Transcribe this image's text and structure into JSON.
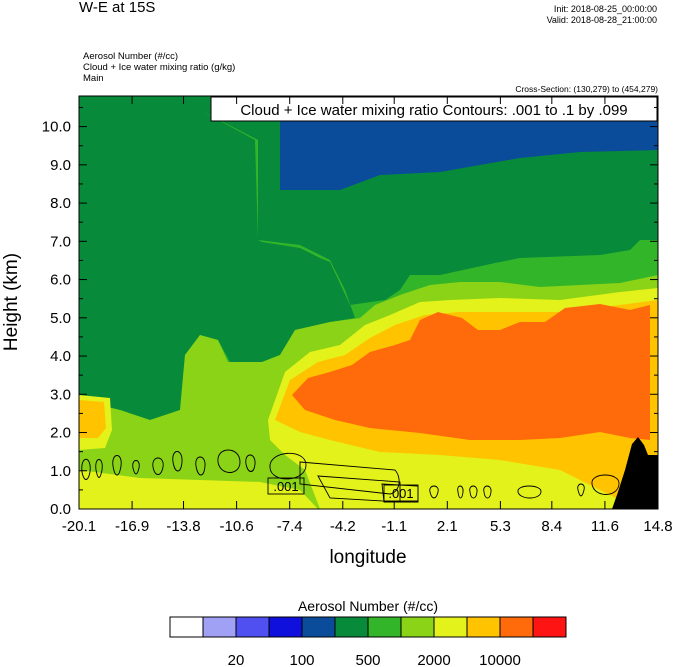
{
  "header": {
    "title": "W-E at 15S",
    "init": "Init: 2018-08-25_00:00:00",
    "valid": "Valid: 2018-08-28_21:00:00",
    "fields": [
      "Aerosol Number   (#/cc)",
      "Cloud + Ice water mixing ratio   (g/kg)",
      "Main"
    ],
    "cross_section": "Cross-Section: (130,279) to (454,279)"
  },
  "chart_data": {
    "type": "heatmap",
    "contour_label": "Cloud + Ice water mixing ratio Contours: .001 to .1 by .099",
    "contour_values": [
      ".001",
      ".001"
    ],
    "xlabel": "longitude",
    "ylabel": "Height (km)",
    "x_ticks": [
      "-20.1",
      "-16.9",
      "-13.8",
      "-10.6",
      "-7.4",
      "-4.2",
      "-1.1",
      "2.1",
      "5.3",
      "8.4",
      "11.6",
      "14.8"
    ],
    "xlim": [
      -20.1,
      14.8
    ],
    "y_ticks": [
      "0.0",
      "1.0",
      "2.0",
      "3.0",
      "4.0",
      "5.0",
      "6.0",
      "7.0",
      "8.0",
      "9.0",
      "10.0"
    ],
    "ylim": [
      0,
      10.8
    ],
    "colorbar": {
      "title": "Aerosol Number  (#/cc)",
      "tick_labels": [
        "20",
        "100",
        "500",
        "2000",
        "10000"
      ],
      "colors": [
        "#ffffff",
        "#a0a0f5",
        "#5050f0",
        "#1010dd",
        "#0a4c9a",
        "#078a3a",
        "#33b52a",
        "#8ad316",
        "#e3f21a",
        "#ffc300",
        "#ff6a0a",
        "#ff1414"
      ]
    },
    "fill_colors": {
      "blue_top": "#0a4c9a",
      "dark_green": "#078a3a",
      "green": "#33b52a",
      "light_green": "#8ad316",
      "yellow": "#e3f21a",
      "orange": "#ffc300",
      "red_orange": "#ff6a0a",
      "terrain": "#000000"
    }
  }
}
